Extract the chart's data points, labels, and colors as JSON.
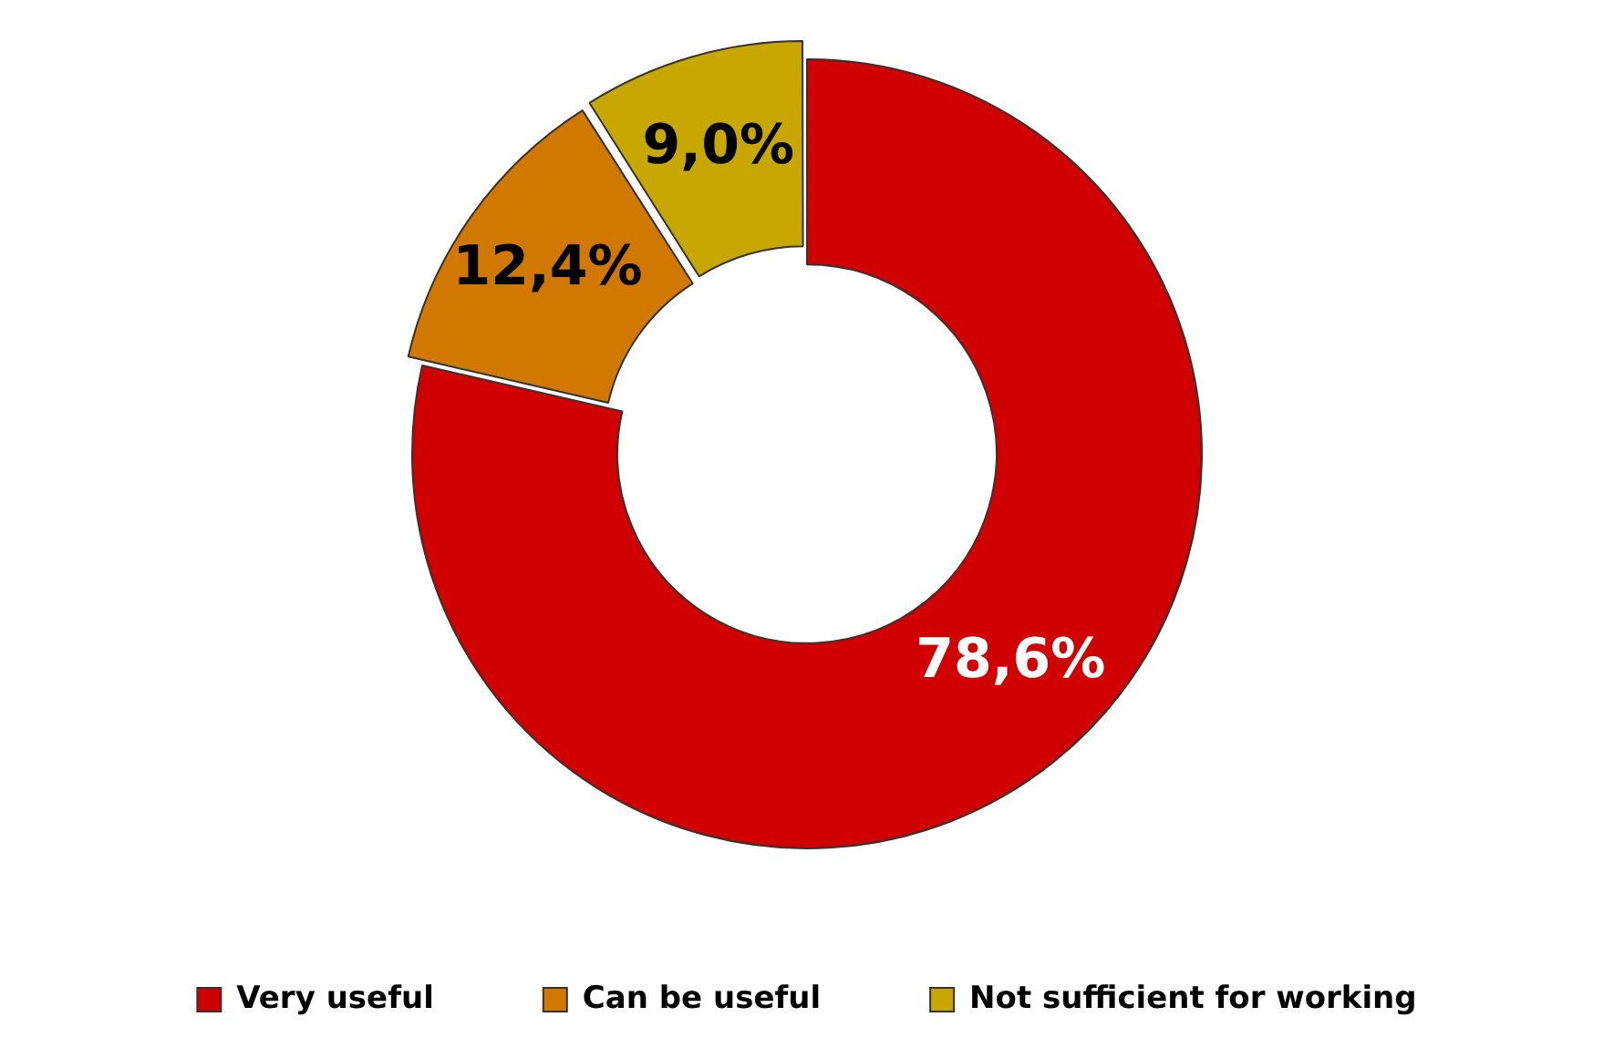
{
  "chart_data": {
    "type": "donut",
    "categories": [
      "Very useful",
      "Can be useful",
      "Not sufficient for working"
    ],
    "values": [
      78.6,
      12.4,
      9.0
    ],
    "colors": [
      "#d00000",
      "#d07800",
      "#c8a800"
    ],
    "value_labels": [
      "78,6%",
      "12,4%",
      "9,0%"
    ],
    "legend": "bottom"
  }
}
